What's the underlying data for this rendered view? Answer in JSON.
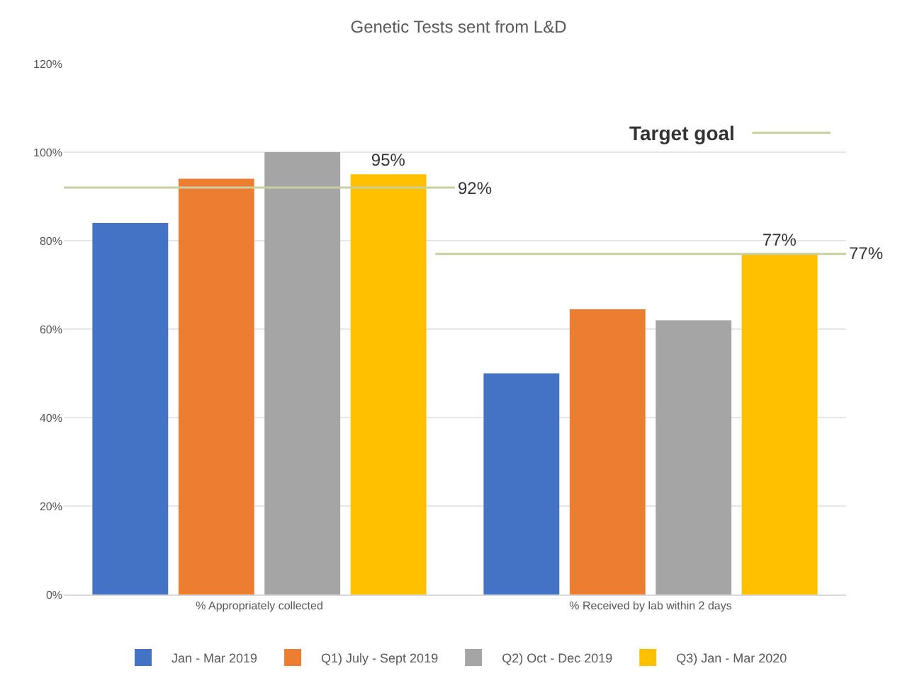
{
  "chart_data": {
    "type": "bar",
    "title": "Genetic Tests sent from L&D",
    "categories": [
      "% Appropriately collected",
      "% Received by lab within 2 days"
    ],
    "series": [
      {
        "name": "Jan - Mar 2019",
        "color": "#4472c4",
        "values": [
          84,
          50
        ]
      },
      {
        "name": "Q1) July - Sept 2019",
        "color": "#ed7d31",
        "values": [
          94,
          64.5
        ]
      },
      {
        "name": "Q2) Oct - Dec 2019",
        "color": "#a5a5a5",
        "values": [
          100,
          62
        ]
      },
      {
        "name": "Q3) Jan - Mar 2020",
        "color": "#ffc000",
        "values": [
          95,
          77
        ],
        "value_labels": [
          "95%",
          "77%"
        ]
      }
    ],
    "ylim": [
      0,
      120
    ],
    "yticks": [
      {
        "value": 0,
        "label": "0%"
      },
      {
        "value": 20,
        "label": "20%"
      },
      {
        "value": 40,
        "label": "40%"
      },
      {
        "value": 60,
        "label": "60%"
      },
      {
        "value": 80,
        "label": "80%"
      },
      {
        "value": 100,
        "label": "100%"
      },
      {
        "value": 120,
        "label": "120%"
      }
    ],
    "ref_lines": [
      {
        "axis": "y",
        "value": 92,
        "label": "92%",
        "color": "#c9cf9f"
      },
      {
        "axis": "y",
        "value": 77,
        "label": "77%",
        "color": "#c9cf9f"
      }
    ],
    "annotations": [
      "Target goal"
    ],
    "grid": "y",
    "legend": "bottom"
  }
}
